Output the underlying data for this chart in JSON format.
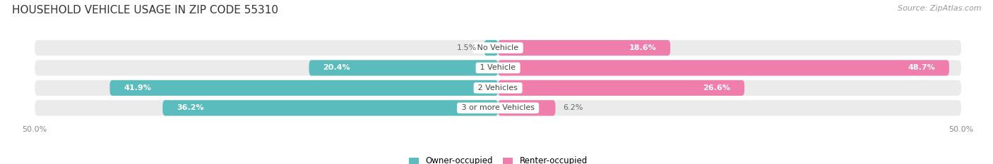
{
  "title": "HOUSEHOLD VEHICLE USAGE IN ZIP CODE 55310",
  "source": "Source: ZipAtlas.com",
  "categories": [
    "No Vehicle",
    "1 Vehicle",
    "2 Vehicles",
    "3 or more Vehicles"
  ],
  "owner_values": [
    1.5,
    20.4,
    41.9,
    36.2
  ],
  "renter_values": [
    18.6,
    48.7,
    26.6,
    6.2
  ],
  "owner_color": "#5bbcbd",
  "renter_color": "#f07ead",
  "owner_label": "Owner-occupied",
  "renter_label": "Renter-occupied",
  "bar_bg_color": "#ebebeb",
  "bar_height": 0.78,
  "xlim": [
    -50,
    50
  ],
  "title_fontsize": 11,
  "source_fontsize": 8,
  "label_fontsize": 8,
  "category_fontsize": 8,
  "background_color": "#ffffff",
  "owner_label_white_threshold": 8,
  "renter_label_white_threshold": 15
}
